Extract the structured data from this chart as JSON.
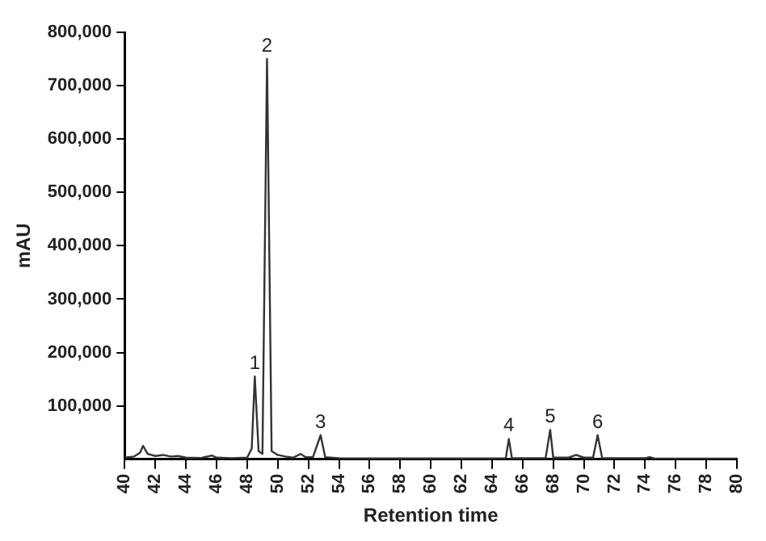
{
  "chart_data": {
    "type": "line",
    "xlabel": "Retention time",
    "ylabel": "mAU",
    "xlim": [
      40,
      80
    ],
    "xticks": [
      40,
      42,
      44,
      46,
      48,
      50,
      52,
      54,
      56,
      58,
      60,
      62,
      64,
      66,
      68,
      70,
      72,
      74,
      76,
      78,
      80
    ],
    "ylim": [
      0,
      800000
    ],
    "yticks": [
      {
        "value": 100000,
        "label": "100,000"
      },
      {
        "value": 200000,
        "label": "200,000"
      },
      {
        "value": 300000,
        "label": "300,000"
      },
      {
        "value": 400000,
        "label": "400,000"
      },
      {
        "value": 500000,
        "label": "500,000"
      },
      {
        "value": 600000,
        "label": "600,000"
      },
      {
        "value": 700000,
        "label": "700,000"
      },
      {
        "value": 800000,
        "label": "800,000"
      }
    ],
    "grid": false,
    "legend": false,
    "marker": "none",
    "line_style": "solid",
    "series": [
      {
        "color": "#333333",
        "x": [
          40,
          40.6,
          41,
          41.2,
          41.5,
          42,
          42.5,
          43,
          43.5,
          44,
          45,
          45.7,
          46,
          47,
          48,
          48.3,
          48.5,
          48.75,
          49,
          49.3,
          49.6,
          50,
          50.5,
          51,
          51.5,
          51.8,
          52.3,
          52.8,
          53.1,
          54,
          56,
          60,
          64,
          64.9,
          65.1,
          65.3,
          67.5,
          67.8,
          68,
          69,
          69.5,
          70,
          70.6,
          70.9,
          71.2,
          74,
          74.3,
          74.6,
          80
        ],
        "values": [
          3000,
          5000,
          12000,
          25000,
          10000,
          6000,
          8000,
          5000,
          6000,
          3000,
          2500,
          7000,
          3000,
          2000,
          3000,
          20000,
          155000,
          15000,
          10000,
          750000,
          15000,
          8000,
          5000,
          3000,
          10000,
          4000,
          4000,
          45000,
          4000,
          2000,
          1500,
          1500,
          1500,
          2000,
          38000,
          2000,
          2000,
          55000,
          3000,
          3000,
          8000,
          3000,
          3000,
          45000,
          2000,
          2000,
          4000,
          1500,
          1000
        ]
      }
    ],
    "annotations": [
      {
        "text": "1",
        "x": 48.5,
        "y": 155000
      },
      {
        "text": "2",
        "x": 49.3,
        "y": 750000
      },
      {
        "text": "3",
        "x": 52.8,
        "y": 45000
      },
      {
        "text": "4",
        "x": 65.1,
        "y": 38000
      },
      {
        "text": "5",
        "x": 67.8,
        "y": 55000
      },
      {
        "text": "6",
        "x": 70.9,
        "y": 45000
      }
    ]
  }
}
